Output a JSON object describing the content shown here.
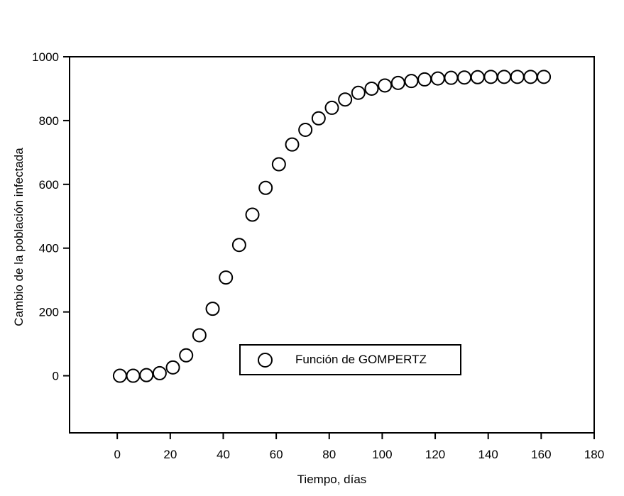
{
  "chart_data": {
    "type": "scatter",
    "title": "",
    "xlabel": "Tiempo, días",
    "ylabel": "Cambio de la población infectada",
    "x_ticks": [
      0,
      20,
      40,
      60,
      80,
      100,
      120,
      140,
      160,
      180
    ],
    "y_ticks": [
      0,
      200,
      400,
      600,
      800,
      1000
    ],
    "xlim": [
      -18,
      180
    ],
    "ylim": [
      -179,
      1000
    ],
    "grid": false,
    "legend_position": "inside-bottom-center",
    "marker": "open-circle",
    "colors": {
      "stroke": "#000000",
      "marker_fill": "#ffffff",
      "background": "#ffffff"
    },
    "series": [
      {
        "name": "Función de GOMPERTZ",
        "x": [
          1,
          6,
          11,
          16,
          21,
          26,
          31,
          36,
          41,
          46,
          51,
          56,
          61,
          66,
          71,
          76,
          81,
          86,
          91,
          96,
          101,
          106,
          111,
          116,
          121,
          126,
          131,
          136,
          141,
          146,
          151,
          156,
          161
        ],
        "y": [
          0,
          0,
          2,
          8,
          26,
          64,
          127,
          210,
          308,
          410,
          505,
          589,
          663,
          725,
          771,
          807,
          840,
          866,
          887,
          900,
          910,
          918,
          924,
          929,
          932,
          934,
          935,
          936,
          937,
          937,
          937,
          937,
          937
        ]
      }
    ]
  }
}
